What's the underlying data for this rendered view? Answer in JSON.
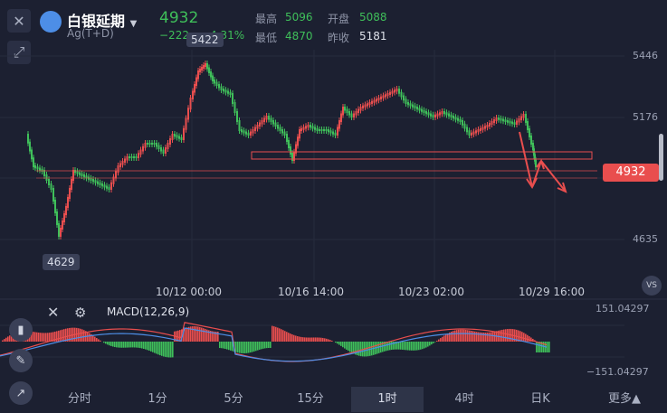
{
  "header": {
    "title": "白银延期",
    "subtitle": "Ag(T+D)",
    "price": "4932",
    "change": "−222",
    "change_pct": "−4.31%",
    "high_label": "最高",
    "high": "5096",
    "open_label": "开盘",
    "open": "5088",
    "low_label": "最低",
    "low": "4870",
    "prev_label": "昨收",
    "prev": "5181"
  },
  "chart": {
    "y_ticks": [
      "5446",
      "5176",
      "4635"
    ],
    "current_price_tag": "4932",
    "max_marker": "5422",
    "min_marker": "4629",
    "x_ticks": [
      "10/12 00:00",
      "10/16 14:00",
      "10/23 02:00",
      "10/29 16:00"
    ],
    "vs_label": "VS"
  },
  "macd": {
    "label": "MACD(12,26,9)",
    "top": "151.04297",
    "bottom": "−151.04297"
  },
  "tabs": [
    "分时",
    "1分",
    "5分",
    "15分",
    "1时",
    "4时",
    "日K",
    "更多▲"
  ],
  "active_tab": "1时",
  "colors": {
    "up": "#e94e4e",
    "down": "#3fbf5a",
    "bg": "#1c2031"
  }
}
